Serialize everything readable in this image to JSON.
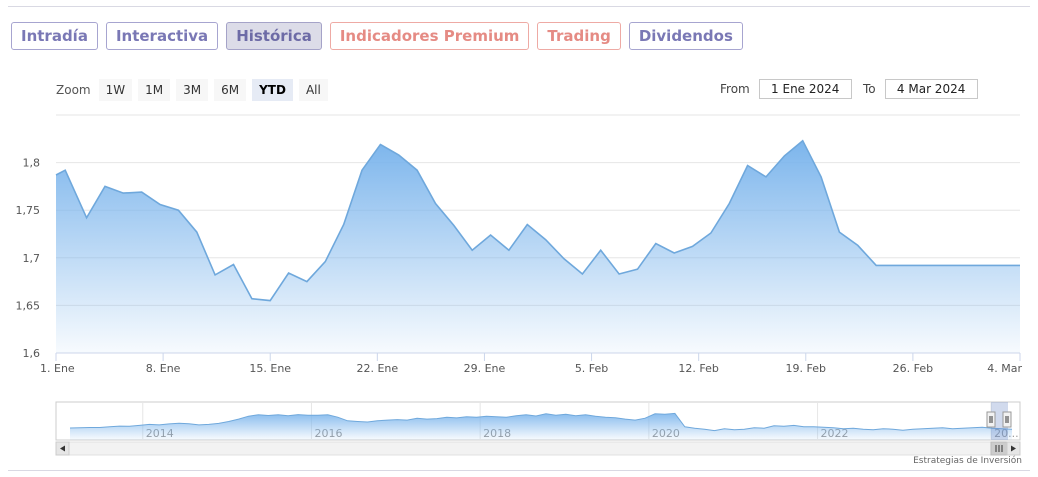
{
  "tabs": [
    {
      "label": "Intradía",
      "style": "violet"
    },
    {
      "label": "Interactiva",
      "style": "violet"
    },
    {
      "label": "Histórica",
      "style": "violet active"
    },
    {
      "label": "Indicadores Premium",
      "style": "salmon"
    },
    {
      "label": "Trading",
      "style": "salmon"
    },
    {
      "label": "Dividendos",
      "style": "violet"
    }
  ],
  "zoom": {
    "label": "Zoom",
    "buttons": [
      "1W",
      "1M",
      "3M",
      "6M",
      "YTD",
      "All"
    ],
    "active": "YTD"
  },
  "range": {
    "from_label": "From",
    "from_value": "1 Ene 2024",
    "to_label": "To",
    "to_value": "4 Mar 2024"
  },
  "credit": "Estrategias de Inversión",
  "colors": {
    "line": "#6fa8dc",
    "fill_top": "#7cb5ec",
    "grid": "#e6e6e6",
    "violet": "#7a78b5",
    "salmon": "#e58b84"
  },
  "chart_data": {
    "type": "area",
    "title": "",
    "xlabel": "",
    "ylabel": "",
    "ylim": [
      1.6,
      1.85
    ],
    "yticks": [
      "1,6",
      "1,65",
      "1,7",
      "1,75",
      "1,8"
    ],
    "xticks": [
      {
        "day": 1,
        "label": "1. Ene"
      },
      {
        "day": 8,
        "label": "8. Ene"
      },
      {
        "day": 15,
        "label": "15. Ene"
      },
      {
        "day": 22,
        "label": "22. Ene"
      },
      {
        "day": 29,
        "label": "29. Ene"
      },
      {
        "day": 36,
        "label": "5. Feb"
      },
      {
        "day": 43,
        "label": "12. Feb"
      },
      {
        "day": 50,
        "label": "19. Feb"
      },
      {
        "day": 57,
        "label": "26. Feb"
      },
      {
        "day": 64,
        "label": "4. Mar"
      }
    ],
    "series": [
      {
        "day": [
          1,
          1.6,
          3,
          4.2,
          5.4,
          6.6,
          7.8,
          9,
          10.2,
          11.4,
          12.6,
          13.8,
          15,
          16.2,
          17.4,
          18.6,
          19.8,
          21,
          22.2,
          23.4,
          24.6,
          25.8,
          27,
          28.2,
          29.4,
          30.6,
          31.8,
          33,
          34.2,
          35.4,
          36.6,
          37.8,
          39,
          40.2,
          41.4,
          42.6,
          43.8,
          45,
          46.2,
          47.4,
          48.6,
          49.8,
          51,
          52.2,
          53.4,
          54.6,
          55.8,
          57,
          58.2,
          59.4,
          60.6,
          61.8,
          63,
          64
        ],
        "value": [
          1.787,
          1.792,
          1.742,
          1.775,
          1.768,
          1.769,
          1.756,
          1.75,
          1.727,
          1.682,
          1.693,
          1.657,
          1.655,
          1.684,
          1.675,
          1.696,
          1.735,
          1.792,
          1.819,
          1.808,
          1.792,
          1.757,
          1.734,
          1.708,
          1.724,
          1.708,
          1.735,
          1.719,
          1.699,
          1.683,
          1.708,
          1.683,
          1.688,
          1.715,
          1.705,
          1.712,
          1.726,
          1.757,
          1.797,
          1.785,
          1.807,
          1.823,
          1.785,
          1.727,
          1.713,
          1.692,
          1.692,
          1.692,
          1.692,
          1.692,
          1.692,
          1.692,
          1.692,
          1.692
        ]
      }
    ],
    "navigator": {
      "year_labels": [
        "2014",
        "2016",
        "2018",
        "2020",
        "2022",
        "20..."
      ],
      "series": [
        0.25,
        0.26,
        0.27,
        0.27,
        0.3,
        0.33,
        0.32,
        0.36,
        0.4,
        0.38,
        0.42,
        0.45,
        0.43,
        0.38,
        0.4,
        0.44,
        0.52,
        0.62,
        0.74,
        0.8,
        0.77,
        0.8,
        0.76,
        0.81,
        0.78,
        0.78,
        0.8,
        0.7,
        0.55,
        0.52,
        0.5,
        0.55,
        0.58,
        0.6,
        0.58,
        0.66,
        0.62,
        0.64,
        0.7,
        0.67,
        0.72,
        0.7,
        0.74,
        0.72,
        0.7,
        0.76,
        0.8,
        0.75,
        0.84,
        0.78,
        0.82,
        0.76,
        0.8,
        0.74,
        0.7,
        0.68,
        0.62,
        0.58,
        0.66,
        0.84,
        0.82,
        0.86,
        0.3,
        0.24,
        0.2,
        0.14,
        0.22,
        0.18,
        0.2,
        0.26,
        0.24,
        0.34,
        0.32,
        0.36,
        0.3,
        0.3,
        0.28,
        0.26,
        0.22,
        0.24,
        0.2,
        0.18,
        0.22,
        0.2,
        0.16,
        0.2,
        0.22,
        0.24,
        0.26,
        0.22,
        0.24,
        0.26,
        0.28,
        0.24,
        0.22,
        0.2
      ]
    }
  }
}
